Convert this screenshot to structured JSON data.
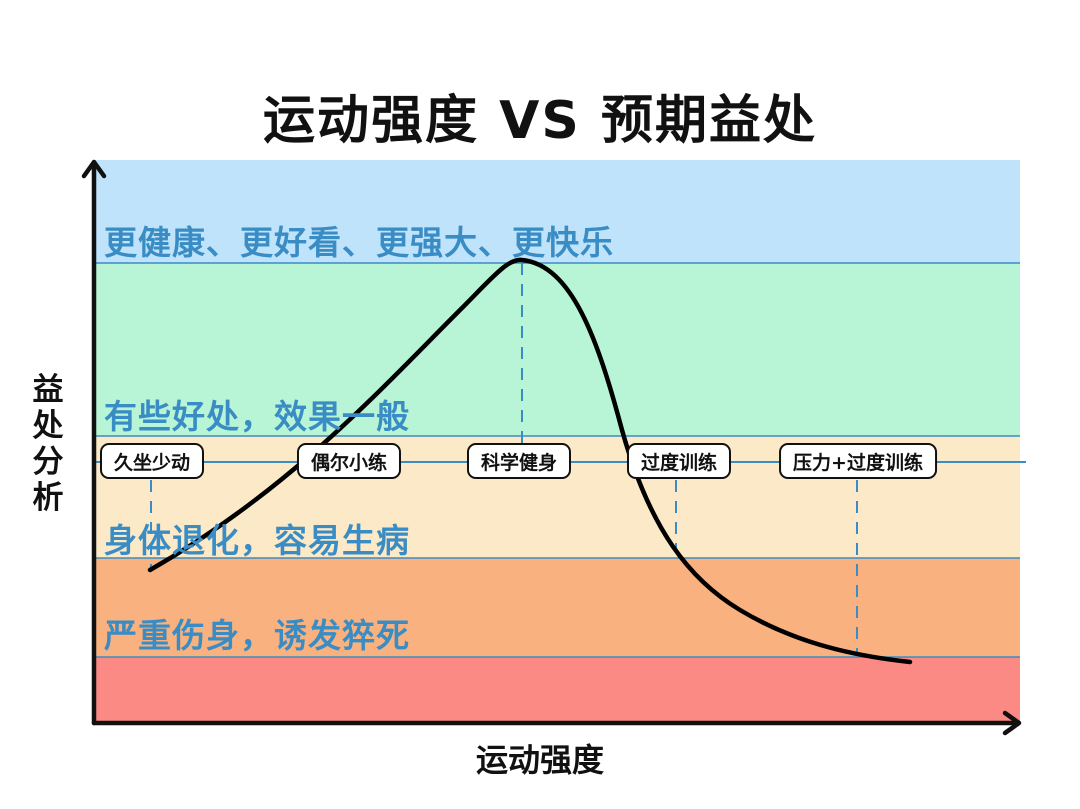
{
  "title": "运动强度 VS 预期益处",
  "axes": {
    "y_label": "益处分析",
    "x_label": "运动强度"
  },
  "zones": [
    {
      "label": "更健康、更好看、更强大、更快乐",
      "color": "#bfe3fb"
    },
    {
      "label": "",
      "color": "#b8f5d6"
    },
    {
      "label": "有些好处，效果一般",
      "color": "#b8f5d6"
    },
    {
      "label": "身体退化，容易生病",
      "color": "#fbe9c7"
    },
    {
      "label": "严重伤身，诱发猝死",
      "color": "#f9b27f"
    },
    {
      "label": "",
      "color": "#fc8a84"
    }
  ],
  "stages": [
    {
      "label": "久坐少动"
    },
    {
      "label": "偶尔小练"
    },
    {
      "label": "科学健身"
    },
    {
      "label": "过度训练"
    },
    {
      "label": "压力+过度训练"
    }
  ],
  "colors": {
    "zone_text": "#3a8cc4",
    "guide_line": "#3a8cc4",
    "curve": "#000000",
    "axis": "#111111"
  }
}
